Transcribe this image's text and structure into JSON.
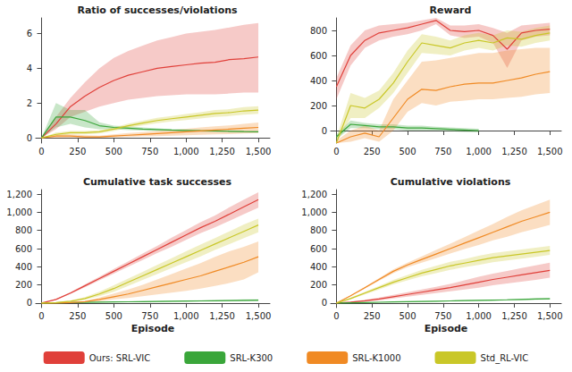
{
  "chart_data": [
    {
      "type": "line",
      "title": "Ratio of successes/violations",
      "x": [
        0,
        100,
        200,
        300,
        400,
        500,
        600,
        700,
        800,
        900,
        1000,
        1100,
        1200,
        1300,
        1400,
        1500
      ],
      "xlim": [
        -40,
        1580
      ],
      "xticks": [
        0,
        250,
        500,
        750,
        1000,
        1250,
        1500
      ],
      "ylim": [
        -0.3,
        6.9
      ],
      "yticks": [
        0,
        2,
        4,
        6
      ],
      "grid": false,
      "legend": "bottom",
      "series": [
        {
          "name": "Ours: SRL-VIC",
          "color": "#e0403a",
          "values": [
            0,
            0.8,
            1.8,
            2.4,
            2.9,
            3.3,
            3.6,
            3.8,
            4.0,
            4.1,
            4.2,
            4.3,
            4.35,
            4.5,
            4.55,
            4.65
          ],
          "lower": [
            0,
            0.5,
            1.2,
            1.5,
            1.8,
            2.0,
            2.2,
            2.3,
            2.4,
            2.45,
            2.5,
            2.5,
            2.5,
            2.55,
            2.6,
            2.6
          ],
          "upper": [
            0,
            1.2,
            2.3,
            3.2,
            4.0,
            4.6,
            5.0,
            5.3,
            5.6,
            5.8,
            6.0,
            6.1,
            6.2,
            6.35,
            6.5,
            6.6
          ]
        },
        {
          "name": "SRL-K300",
          "color": "#3aa63a",
          "values": [
            0,
            1.2,
            1.2,
            1.0,
            0.7,
            0.6,
            0.55,
            0.5,
            0.48,
            0.45,
            0.43,
            0.41,
            0.4,
            0.38,
            0.36,
            0.35
          ],
          "lower": [
            0,
            0.6,
            0.8,
            0.6,
            0.5,
            0.5,
            0.45,
            0.42,
            0.4,
            0.38,
            0.36,
            0.34,
            0.33,
            0.32,
            0.31,
            0.3
          ],
          "upper": [
            0,
            2.0,
            1.6,
            1.6,
            0.9,
            0.7,
            0.65,
            0.6,
            0.55,
            0.5,
            0.48,
            0.46,
            0.45,
            0.43,
            0.42,
            0.4
          ]
        },
        {
          "name": "SRL-K1000",
          "color": "#f08a24",
          "values": [
            0,
            0.1,
            0.1,
            0.05,
            0.05,
            0.1,
            0.15,
            0.2,
            0.25,
            0.3,
            0.35,
            0.4,
            0.45,
            0.5,
            0.55,
            0.6
          ],
          "lower": [
            0,
            0.0,
            0.0,
            0.0,
            0.0,
            0.02,
            0.05,
            0.08,
            0.1,
            0.12,
            0.15,
            0.18,
            0.2,
            0.22,
            0.25,
            0.28
          ],
          "upper": [
            0,
            0.2,
            0.2,
            0.15,
            0.12,
            0.2,
            0.28,
            0.33,
            0.4,
            0.46,
            0.52,
            0.6,
            0.66,
            0.72,
            0.8,
            0.88
          ]
        },
        {
          "name": "Std_RL-VIC",
          "color": "#c9c728",
          "values": [
            0,
            0.2,
            0.3,
            0.3,
            0.35,
            0.5,
            0.7,
            0.85,
            1.0,
            1.1,
            1.2,
            1.3,
            1.4,
            1.45,
            1.55,
            1.6
          ],
          "lower": [
            0,
            0.1,
            0.2,
            0.2,
            0.25,
            0.4,
            0.58,
            0.72,
            0.85,
            0.95,
            1.03,
            1.12,
            1.2,
            1.25,
            1.33,
            1.38
          ],
          "upper": [
            0,
            0.3,
            0.4,
            0.4,
            0.45,
            0.6,
            0.82,
            0.98,
            1.15,
            1.25,
            1.37,
            1.48,
            1.6,
            1.65,
            1.77,
            1.82
          ]
        }
      ]
    },
    {
      "type": "line",
      "title": "Reward",
      "x": [
        0,
        100,
        200,
        300,
        400,
        500,
        600,
        700,
        800,
        900,
        1000,
        1100,
        1200,
        1300,
        1400,
        1500
      ],
      "xlim": [
        -40,
        1580
      ],
      "xticks": [
        0,
        250,
        500,
        750,
        1000,
        1250,
        1500
      ],
      "ylim": [
        -100,
        900
      ],
      "yticks": [
        0,
        200,
        400,
        600,
        800
      ],
      "grid": false,
      "legend": "bottom",
      "series": [
        {
          "name": "Ours: SRL-VIC",
          "color": "#e0403a",
          "values": [
            350,
            600,
            720,
            780,
            800,
            820,
            850,
            880,
            800,
            790,
            800,
            760,
            650,
            780,
            800,
            810
          ],
          "lower": [
            250,
            520,
            660,
            720,
            750,
            770,
            800,
            850,
            760,
            740,
            750,
            700,
            500,
            720,
            750,
            760
          ],
          "upper": [
            420,
            680,
            800,
            840,
            850,
            860,
            880,
            900,
            840,
            840,
            850,
            820,
            780,
            840,
            850,
            860
          ]
        },
        {
          "name": "SRL-K300",
          "color": "#3aa63a",
          "values": [
            -50,
            50,
            40,
            30,
            30,
            20,
            20,
            15,
            10,
            5,
            0,
            null,
            null,
            null,
            null,
            null
          ],
          "lower": [
            -70,
            20,
            20,
            10,
            10,
            0,
            0,
            0,
            -5,
            -10,
            -15,
            null,
            null,
            null,
            null,
            null
          ],
          "upper": [
            -30,
            80,
            60,
            50,
            50,
            40,
            40,
            30,
            25,
            20,
            15,
            null,
            null,
            null,
            null,
            null
          ]
        },
        {
          "name": "SRL-K1000",
          "color": "#f08a24",
          "values": [
            -100,
            -50,
            -20,
            -50,
            100,
            250,
            330,
            320,
            350,
            370,
            380,
            380,
            400,
            420,
            450,
            470
          ],
          "lower": [
            -100,
            -90,
            -60,
            -90,
            0,
            150,
            220,
            200,
            230,
            240,
            250,
            250,
            260,
            270,
            290,
            300
          ],
          "upper": [
            -80,
            0,
            40,
            0,
            250,
            400,
            550,
            560,
            580,
            600,
            620,
            620,
            640,
            650,
            660,
            660
          ]
        },
        {
          "name": "Std_RL-VIC",
          "color": "#c9c728",
          "values": [
            -100,
            200,
            180,
            250,
            380,
            550,
            700,
            680,
            660,
            700,
            720,
            700,
            740,
            730,
            760,
            780
          ],
          "lower": [
            -100,
            100,
            100,
            180,
            300,
            460,
            620,
            610,
            600,
            640,
            660,
            640,
            680,
            670,
            700,
            720
          ],
          "upper": [
            -60,
            300,
            260,
            320,
            460,
            640,
            770,
            750,
            720,
            760,
            780,
            760,
            800,
            790,
            820,
            840
          ]
        }
      ]
    },
    {
      "type": "line",
      "title": "Cumulative task successes",
      "xlabel": "Episode",
      "x": [
        0,
        100,
        200,
        300,
        400,
        500,
        600,
        700,
        800,
        900,
        1000,
        1100,
        1200,
        1300,
        1400,
        1500
      ],
      "xlim": [
        -40,
        1580
      ],
      "xticks": [
        0,
        250,
        500,
        750,
        1000,
        1250,
        1500
      ],
      "ylim": [
        -50,
        1250
      ],
      "yticks": [
        0,
        200,
        400,
        600,
        800,
        1000,
        1200
      ],
      "grid": false,
      "legend": "bottom",
      "series": [
        {
          "name": "Ours: SRL-VIC",
          "color": "#e0403a",
          "values": [
            0,
            40,
            110,
            190,
            270,
            350,
            430,
            510,
            590,
            670,
            750,
            830,
            900,
            980,
            1060,
            1140
          ],
          "lower": [
            0,
            35,
            100,
            175,
            250,
            325,
            400,
            475,
            550,
            620,
            695,
            770,
            835,
            905,
            980,
            1050
          ],
          "upper": [
            0,
            45,
            120,
            205,
            290,
            375,
            460,
            545,
            630,
            720,
            805,
            890,
            965,
            1055,
            1140,
            1220
          ]
        },
        {
          "name": "SRL-K300",
          "color": "#3aa63a",
          "values": [
            0,
            2,
            5,
            8,
            10,
            12,
            14,
            16,
            18,
            20,
            22,
            24,
            26,
            28,
            30,
            32
          ],
          "lower": [
            0,
            1,
            3,
            5,
            7,
            8,
            10,
            11,
            12,
            14,
            15,
            16,
            18,
            19,
            20,
            22
          ],
          "upper": [
            0,
            3,
            7,
            11,
            13,
            16,
            18,
            21,
            24,
            26,
            29,
            32,
            34,
            37,
            40,
            42
          ]
        },
        {
          "name": "SRL-K1000",
          "color": "#f08a24",
          "values": [
            0,
            0,
            5,
            15,
            40,
            70,
            100,
            140,
            180,
            220,
            260,
            300,
            350,
            400,
            450,
            510
          ],
          "lower": [
            0,
            0,
            2,
            8,
            20,
            40,
            55,
            75,
            95,
            115,
            135,
            160,
            190,
            220,
            260,
            340
          ],
          "upper": [
            0,
            0,
            8,
            25,
            60,
            105,
            150,
            200,
            260,
            320,
            380,
            440,
            510,
            570,
            620,
            680
          ]
        },
        {
          "name": "Std_RL-VIC",
          "color": "#c9c728",
          "values": [
            0,
            5,
            20,
            50,
            100,
            160,
            230,
            300,
            370,
            440,
            510,
            580,
            650,
            720,
            790,
            860
          ],
          "lower": [
            0,
            3,
            12,
            35,
            75,
            125,
            190,
            255,
            320,
            385,
            450,
            515,
            585,
            650,
            715,
            780
          ],
          "upper": [
            0,
            8,
            28,
            65,
            125,
            195,
            270,
            345,
            420,
            495,
            570,
            645,
            715,
            790,
            865,
            930
          ]
        }
      ]
    },
    {
      "type": "line",
      "title": "Cumulative violations",
      "xlabel": "Episode",
      "x": [
        0,
        100,
        200,
        300,
        400,
        500,
        600,
        700,
        800,
        900,
        1000,
        1100,
        1200,
        1300,
        1400,
        1500
      ],
      "xlim": [
        -40,
        1580
      ],
      "xticks": [
        0,
        250,
        500,
        750,
        1000,
        1250,
        1500
      ],
      "ylim": [
        -50,
        1250
      ],
      "yticks": [
        0,
        200,
        400,
        600,
        800,
        1000,
        1200
      ],
      "grid": false,
      "legend": "bottom",
      "series": [
        {
          "name": "Ours: SRL-VIC",
          "color": "#e0403a",
          "values": [
            0,
            10,
            25,
            45,
            70,
            95,
            120,
            145,
            170,
            200,
            230,
            260,
            285,
            310,
            335,
            360
          ],
          "lower": [
            0,
            5,
            15,
            30,
            50,
            70,
            90,
            110,
            130,
            150,
            170,
            195,
            215,
            235,
            255,
            280
          ],
          "upper": [
            0,
            15,
            35,
            60,
            90,
            120,
            150,
            180,
            210,
            250,
            290,
            325,
            355,
            385,
            415,
            445
          ]
        },
        {
          "name": "SRL-K300",
          "color": "#3aa63a",
          "values": [
            0,
            3,
            6,
            9,
            12,
            15,
            18,
            21,
            24,
            27,
            30,
            33,
            36,
            40,
            44,
            48
          ],
          "lower": [
            0,
            2,
            4,
            7,
            9,
            12,
            14,
            17,
            19,
            22,
            24,
            27,
            29,
            32,
            35,
            38
          ],
          "upper": [
            0,
            4,
            8,
            11,
            15,
            18,
            22,
            25,
            29,
            32,
            36,
            39,
            43,
            48,
            53,
            58
          ]
        },
        {
          "name": "SRL-K1000",
          "color": "#f08a24",
          "values": [
            0,
            80,
            170,
            260,
            350,
            420,
            480,
            540,
            600,
            660,
            720,
            780,
            840,
            900,
            950,
            1000
          ],
          "lower": [
            0,
            75,
            160,
            245,
            330,
            395,
            445,
            495,
            545,
            595,
            640,
            690,
            730,
            780,
            820,
            860
          ],
          "upper": [
            0,
            85,
            180,
            275,
            370,
            445,
            515,
            585,
            655,
            725,
            800,
            870,
            950,
            1020,
            1080,
            1140
          ]
        },
        {
          "name": "Std_RL-VIC",
          "color": "#c9c728",
          "values": [
            0,
            50,
            110,
            170,
            230,
            280,
            330,
            370,
            410,
            440,
            470,
            500,
            520,
            540,
            560,
            580
          ],
          "lower": [
            0,
            40,
            95,
            150,
            205,
            250,
            295,
            330,
            365,
            395,
            420,
            450,
            470,
            490,
            510,
            530
          ],
          "upper": [
            0,
            60,
            125,
            190,
            255,
            310,
            365,
            410,
            455,
            485,
            520,
            550,
            570,
            590,
            610,
            630
          ]
        }
      ]
    }
  ]
}
